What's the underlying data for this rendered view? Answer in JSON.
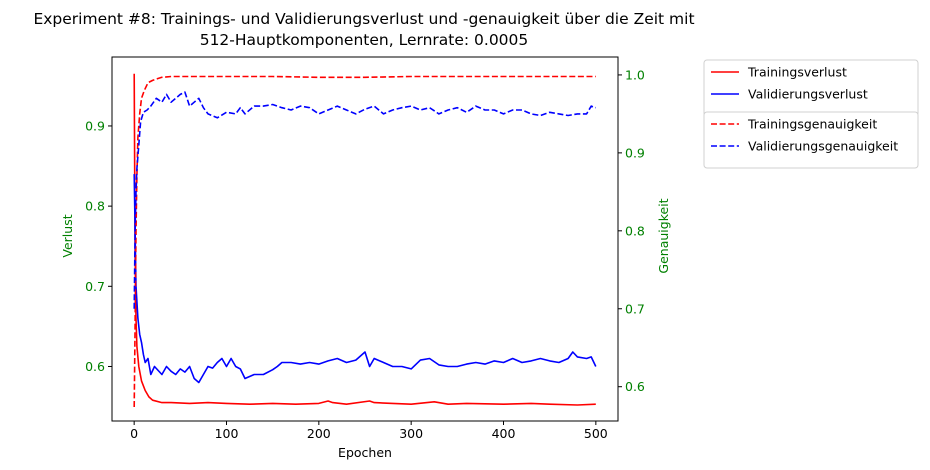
{
  "chart_data": {
    "type": "line",
    "title": "Experiment #8: Trainings- und Validierungsverlust und -genauigkeit über die Zeit mit",
    "subtitle": "512-Hauptkomponenten, Lernrate: 0.0005",
    "xlabel": "Epochen",
    "ylabel_left": "Verlust",
    "ylabel_right": "Genauigkeit",
    "xlim": [
      -24,
      524
    ],
    "ylim_left": [
      0.532,
      0.986
    ],
    "ylim_right": [
      0.556,
      1.023
    ],
    "x_ticks": [
      0,
      100,
      200,
      300,
      400,
      500
    ],
    "y_ticks_left": [
      0.6,
      0.7,
      0.8,
      0.9
    ],
    "y_ticks_right": [
      0.6,
      0.7,
      0.8,
      0.9,
      1.0
    ],
    "tick_color": "#008000",
    "grid": false,
    "legend_placement": "outside-right",
    "legends": [
      [
        {
          "name": "Trainingsverlust",
          "color": "#ff0000",
          "dash": "solid"
        },
        {
          "name": "Validierungsverlust",
          "color": "#0000ff",
          "dash": "solid"
        }
      ],
      [
        {
          "name": "Trainingsgenauigkeit",
          "color": "#ff0000",
          "dash": "dashed"
        },
        {
          "name": "Validierungsgenauigkeit",
          "color": "#0000ff",
          "dash": "dashed"
        }
      ]
    ],
    "series": [
      {
        "name": "Trainingsverlust",
        "axis": "left",
        "color": "#ff0000",
        "dash": "solid",
        "points": [
          [
            0,
            0.965
          ],
          [
            1,
            0.74
          ],
          [
            2,
            0.66
          ],
          [
            3,
            0.625
          ],
          [
            5,
            0.6
          ],
          [
            8,
            0.582
          ],
          [
            12,
            0.57
          ],
          [
            16,
            0.562
          ],
          [
            20,
            0.558
          ],
          [
            30,
            0.555
          ],
          [
            40,
            0.555
          ],
          [
            60,
            0.554
          ],
          [
            80,
            0.555
          ],
          [
            100,
            0.554
          ],
          [
            125,
            0.553
          ],
          [
            150,
            0.554
          ],
          [
            175,
            0.553
          ],
          [
            200,
            0.554
          ],
          [
            210,
            0.557
          ],
          [
            215,
            0.555
          ],
          [
            230,
            0.553
          ],
          [
            255,
            0.557
          ],
          [
            260,
            0.555
          ],
          [
            280,
            0.554
          ],
          [
            300,
            0.553
          ],
          [
            325,
            0.556
          ],
          [
            340,
            0.553
          ],
          [
            360,
            0.554
          ],
          [
            400,
            0.553
          ],
          [
            430,
            0.554
          ],
          [
            450,
            0.553
          ],
          [
            480,
            0.552
          ],
          [
            500,
            0.553
          ]
        ]
      },
      {
        "name": "Validierungsverlust",
        "axis": "left",
        "color": "#0000ff",
        "dash": "solid",
        "points": [
          [
            0,
            0.84
          ],
          [
            2,
            0.7
          ],
          [
            4,
            0.66
          ],
          [
            6,
            0.64
          ],
          [
            8,
            0.63
          ],
          [
            10,
            0.615
          ],
          [
            12,
            0.605
          ],
          [
            15,
            0.61
          ],
          [
            18,
            0.59
          ],
          [
            22,
            0.6
          ],
          [
            26,
            0.595
          ],
          [
            30,
            0.59
          ],
          [
            35,
            0.6
          ],
          [
            40,
            0.594
          ],
          [
            45,
            0.59
          ],
          [
            50,
            0.597
          ],
          [
            55,
            0.593
          ],
          [
            60,
            0.6
          ],
          [
            65,
            0.585
          ],
          [
            70,
            0.58
          ],
          [
            75,
            0.59
          ],
          [
            80,
            0.6
          ],
          [
            85,
            0.598
          ],
          [
            90,
            0.605
          ],
          [
            95,
            0.61
          ],
          [
            100,
            0.6
          ],
          [
            105,
            0.61
          ],
          [
            110,
            0.6
          ],
          [
            115,
            0.597
          ],
          [
            120,
            0.585
          ],
          [
            130,
            0.59
          ],
          [
            140,
            0.59
          ],
          [
            150,
            0.596
          ],
          [
            155,
            0.6
          ],
          [
            160,
            0.605
          ],
          [
            170,
            0.605
          ],
          [
            180,
            0.603
          ],
          [
            190,
            0.605
          ],
          [
            200,
            0.603
          ],
          [
            210,
            0.607
          ],
          [
            220,
            0.61
          ],
          [
            230,
            0.605
          ],
          [
            240,
            0.608
          ],
          [
            250,
            0.618
          ],
          [
            255,
            0.6
          ],
          [
            260,
            0.61
          ],
          [
            270,
            0.605
          ],
          [
            280,
            0.6
          ],
          [
            290,
            0.6
          ],
          [
            300,
            0.597
          ],
          [
            310,
            0.608
          ],
          [
            320,
            0.61
          ],
          [
            330,
            0.602
          ],
          [
            340,
            0.6
          ],
          [
            350,
            0.6
          ],
          [
            360,
            0.603
          ],
          [
            370,
            0.605
          ],
          [
            380,
            0.603
          ],
          [
            390,
            0.607
          ],
          [
            400,
            0.605
          ],
          [
            410,
            0.61
          ],
          [
            420,
            0.605
          ],
          [
            430,
            0.607
          ],
          [
            440,
            0.61
          ],
          [
            450,
            0.607
          ],
          [
            460,
            0.605
          ],
          [
            470,
            0.61
          ],
          [
            475,
            0.618
          ],
          [
            480,
            0.612
          ],
          [
            490,
            0.61
          ],
          [
            495,
            0.612
          ],
          [
            500,
            0.6
          ]
        ]
      },
      {
        "name": "Trainingsgenauigkeit",
        "axis": "right",
        "color": "#ff0000",
        "dash": "dashed",
        "points": [
          [
            0,
            0.574
          ],
          [
            1,
            0.68
          ],
          [
            2,
            0.8
          ],
          [
            3,
            0.87
          ],
          [
            4,
            0.92
          ],
          [
            6,
            0.95
          ],
          [
            8,
            0.97
          ],
          [
            11,
            0.98
          ],
          [
            15,
            0.99
          ],
          [
            20,
            0.993
          ],
          [
            25,
            0.995
          ],
          [
            30,
            0.997
          ],
          [
            40,
            0.998
          ],
          [
            60,
            0.998
          ],
          [
            100,
            0.998
          ],
          [
            150,
            0.998
          ],
          [
            200,
            0.997
          ],
          [
            250,
            0.997
          ],
          [
            300,
            0.998
          ],
          [
            350,
            0.998
          ],
          [
            400,
            0.998
          ],
          [
            450,
            0.998
          ],
          [
            500,
            0.998
          ]
        ]
      },
      {
        "name": "Validierungsgenauigkeit",
        "axis": "right",
        "color": "#0000ff",
        "dash": "dashed",
        "points": [
          [
            0,
            0.7
          ],
          [
            1,
            0.8
          ],
          [
            2,
            0.85
          ],
          [
            3,
            0.88
          ],
          [
            5,
            0.91
          ],
          [
            7,
            0.94
          ],
          [
            10,
            0.952
          ],
          [
            14,
            0.955
          ],
          [
            18,
            0.96
          ],
          [
            24,
            0.97
          ],
          [
            30,
            0.965
          ],
          [
            35,
            0.975
          ],
          [
            40,
            0.965
          ],
          [
            45,
            0.97
          ],
          [
            50,
            0.975
          ],
          [
            55,
            0.978
          ],
          [
            60,
            0.96
          ],
          [
            65,
            0.965
          ],
          [
            70,
            0.97
          ],
          [
            75,
            0.958
          ],
          [
            80,
            0.95
          ],
          [
            90,
            0.945
          ],
          [
            100,
            0.952
          ],
          [
            110,
            0.95
          ],
          [
            115,
            0.958
          ],
          [
            120,
            0.95
          ],
          [
            130,
            0.96
          ],
          [
            140,
            0.96
          ],
          [
            150,
            0.962
          ],
          [
            160,
            0.958
          ],
          [
            170,
            0.955
          ],
          [
            180,
            0.96
          ],
          [
            190,
            0.958
          ],
          [
            200,
            0.95
          ],
          [
            210,
            0.955
          ],
          [
            220,
            0.96
          ],
          [
            230,
            0.955
          ],
          [
            240,
            0.95
          ],
          [
            250,
            0.956
          ],
          [
            260,
            0.96
          ],
          [
            270,
            0.95
          ],
          [
            280,
            0.955
          ],
          [
            290,
            0.958
          ],
          [
            300,
            0.96
          ],
          [
            310,
            0.955
          ],
          [
            320,
            0.958
          ],
          [
            330,
            0.95
          ],
          [
            340,
            0.955
          ],
          [
            350,
            0.958
          ],
          [
            360,
            0.952
          ],
          [
            370,
            0.96
          ],
          [
            380,
            0.955
          ],
          [
            390,
            0.955
          ],
          [
            400,
            0.95
          ],
          [
            410,
            0.955
          ],
          [
            420,
            0.955
          ],
          [
            430,
            0.95
          ],
          [
            440,
            0.948
          ],
          [
            450,
            0.952
          ],
          [
            460,
            0.95
          ],
          [
            470,
            0.948
          ],
          [
            480,
            0.95
          ],
          [
            490,
            0.95
          ],
          [
            495,
            0.96
          ],
          [
            500,
            0.958
          ]
        ]
      }
    ]
  }
}
